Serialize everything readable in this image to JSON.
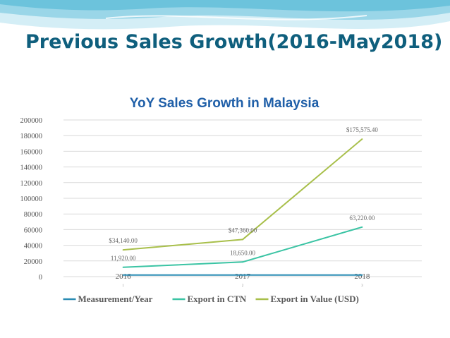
{
  "slide": {
    "title": "Previous Sales Growth(2016-May2018)",
    "colors": {
      "title": "#0f5f7d",
      "decoration": "#6cc3dc"
    }
  },
  "chart_data": {
    "type": "line",
    "title": "YoY Sales Growth in Malaysia",
    "categories": [
      "2016",
      "2017",
      "2018"
    ],
    "category_index_labels": [
      "1",
      "2",
      "3"
    ],
    "ylim": [
      0,
      200000
    ],
    "yticks": [
      0,
      20000,
      40000,
      60000,
      80000,
      100000,
      120000,
      140000,
      160000,
      180000,
      200000
    ],
    "grid": true,
    "legend_position": "bottom",
    "series": [
      {
        "name": "Measurement/Year",
        "color": "#2a8bb3",
        "values": [
          2016,
          2017,
          2018
        ],
        "labels": []
      },
      {
        "name": "Export in CTN",
        "color": "#3bc4a4",
        "values": [
          11920,
          18650,
          63220
        ],
        "labels": [
          "11,920.00",
          "18,650.00",
          "63,220.00"
        ]
      },
      {
        "name": "Export in Value (USD)",
        "color": "#a8bf4a",
        "values": [
          34140,
          47360,
          175575.4
        ],
        "labels": [
          "$34,140.00",
          "$47,360.00",
          "$175,575.40"
        ]
      }
    ]
  }
}
